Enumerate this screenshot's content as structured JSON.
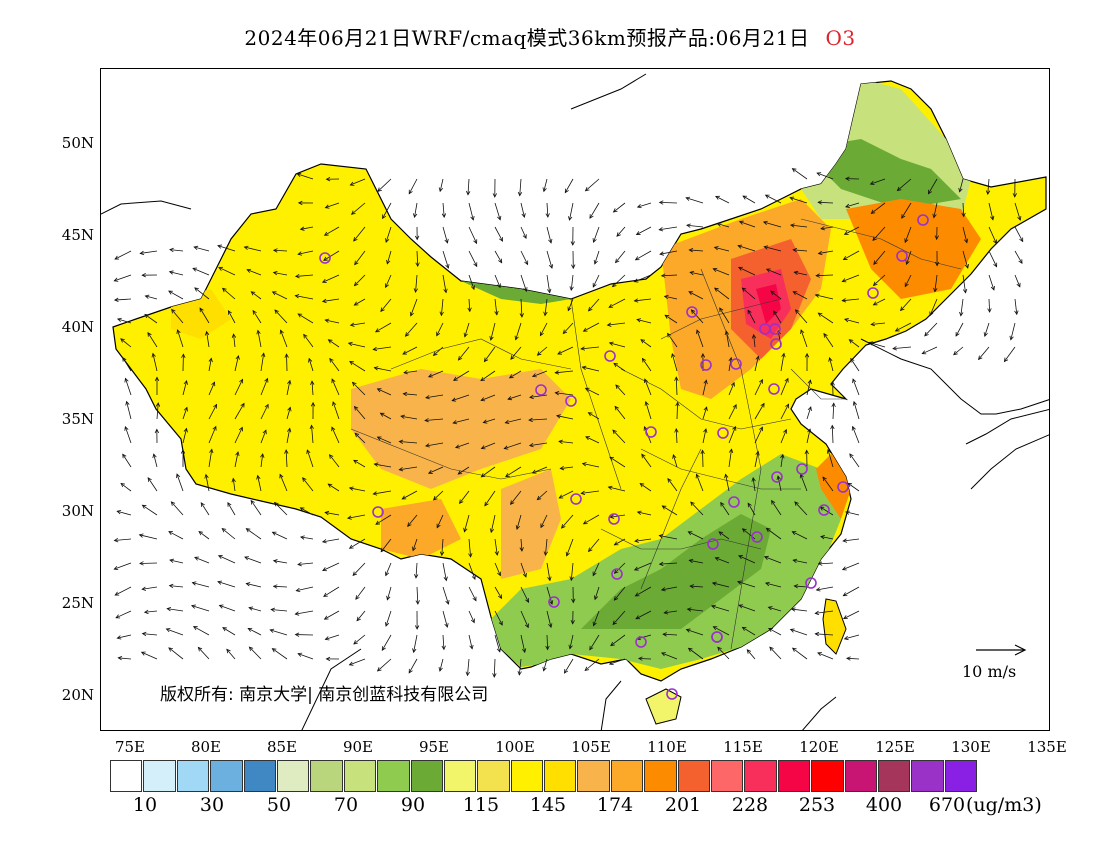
{
  "header": {
    "title": "2024年06月21日WRF/cmaq模式36km预报产品:06月21日",
    "species": "O3"
  },
  "axes": {
    "lat_labels": [
      "50N",
      "45N",
      "40N",
      "35N",
      "30N",
      "25N",
      "20N"
    ],
    "lon_labels": [
      "75E",
      "80E",
      "85E",
      "90E",
      "95E",
      "100E",
      "105E",
      "110E",
      "115E",
      "120E",
      "125E",
      "130E",
      "135E"
    ]
  },
  "map": {
    "copyright": "版权所有: 南京大学| 南京创蓝科技有限公司",
    "wind_scale_label": "10 m/s",
    "station_color": "#9b2fd0"
  },
  "colorbar": {
    "colors": [
      "#ffffff",
      "#d4eefa",
      "#a0d8f5",
      "#6cb0df",
      "#3f88c4",
      "#dfebc0",
      "#b9d67c",
      "#c7e17d",
      "#8fcb4f",
      "#6aaa35",
      "#f2f56a",
      "#f3e24e",
      "#fff000",
      "#ffdf00",
      "#f8b44a",
      "#fca829",
      "#fd8b00",
      "#f5612e",
      "#fd6767",
      "#f82f5a",
      "#f50545",
      "#fe0000",
      "#c81473",
      "#a5355a",
      "#9b32c8",
      "#8a20e3"
    ],
    "labels": [
      "10",
      "30",
      "50",
      "70",
      "90",
      "115",
      "145",
      "174",
      "201",
      "228",
      "253",
      "400",
      "670"
    ],
    "units": "(ug/m3)"
  }
}
